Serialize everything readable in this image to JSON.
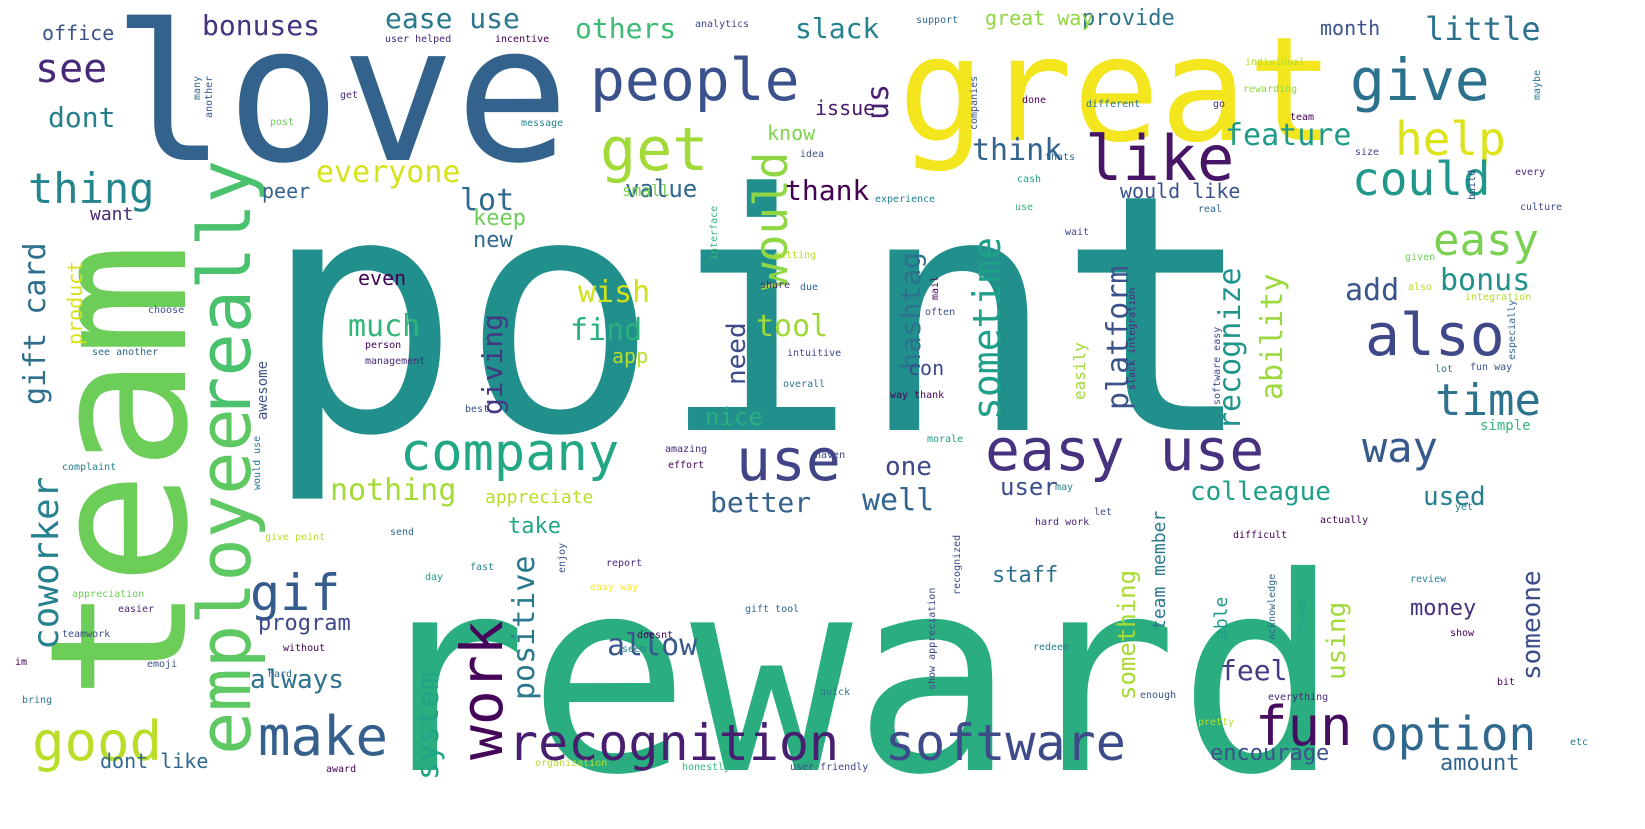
{
  "colors": {
    "background": "#ffffff",
    "palette": [
      "#440154",
      "#482878",
      "#3e4989",
      "#31688e",
      "#26828e",
      "#1f9e89",
      "#35b779",
      "#6ece58",
      "#b5de2b",
      "#fde725"
    ]
  },
  "words": [
    {
      "text": "point",
      "color": "#21908d"
    },
    {
      "text": "reward",
      "color": "#2aae7f"
    },
    {
      "text": "love",
      "color": "#33638d"
    },
    {
      "text": "great",
      "color": "#f3e51e"
    },
    {
      "text": "team",
      "color": "#6ccd59"
    },
    {
      "text": "employee",
      "color": "#5ec962"
    },
    {
      "text": "really",
      "color": "#4ac16d"
    },
    {
      "text": "people",
      "color": "#3b518b"
    },
    {
      "text": "give",
      "color": "#2c728e"
    },
    {
      "text": "help",
      "color": "#dde318"
    },
    {
      "text": "like",
      "color": "#481467"
    },
    {
      "text": "get",
      "color": "#a2da37"
    },
    {
      "text": "could",
      "color": "#1f988b"
    },
    {
      "text": "easy",
      "color": "#7ad151"
    },
    {
      "text": "also",
      "color": "#3f4889"
    },
    {
      "text": "time",
      "color": "#2c738e"
    },
    {
      "text": "company",
      "color": "#22a884"
    },
    {
      "text": "easy use",
      "color": "#46327e"
    },
    {
      "text": "use",
      "color": "#414487"
    },
    {
      "text": "way",
      "color": "#375a8c"
    },
    {
      "text": "work",
      "color": "#450559"
    },
    {
      "text": "make",
      "color": "#355f8d"
    },
    {
      "text": "software",
      "color": "#3e4a89"
    },
    {
      "text": "recognition",
      "color": "#481f70"
    },
    {
      "text": "fun",
      "color": "#470d60"
    },
    {
      "text": "option",
      "color": "#31688e"
    },
    {
      "text": "good",
      "color": "#bade28"
    },
    {
      "text": "gif",
      "color": "#365c8d"
    },
    {
      "text": "coworker",
      "color": "#26828e"
    },
    {
      "text": "thing",
      "color": "#25858e"
    },
    {
      "text": "see",
      "color": "#482878"
    },
    {
      "text": "dont",
      "color": "#277f8e"
    },
    {
      "text": "bonuses",
      "color": "#46337f"
    },
    {
      "text": "ease use",
      "color": "#2a788e"
    },
    {
      "text": "others",
      "color": "#3dbc74"
    },
    {
      "text": "slack",
      "color": "#25838e"
    },
    {
      "text": "little",
      "color": "#2d718e"
    },
    {
      "text": "office",
      "color": "#3b528b"
    },
    {
      "text": "would",
      "color": "#8fd744"
    },
    {
      "text": "sometime",
      "color": "#1fa088"
    },
    {
      "text": "hashtag",
      "color": "#2c728e"
    },
    {
      "text": "everyone",
      "color": "#d8e219"
    },
    {
      "text": "thank",
      "color": "#440154"
    },
    {
      "text": "feature",
      "color": "#1f9a8a"
    },
    {
      "text": "think",
      "color": "#33638d"
    },
    {
      "text": "lot",
      "color": "#2f6b8e"
    },
    {
      "text": "us",
      "color": "#482173"
    },
    {
      "text": "bonus",
      "color": "#21918c"
    },
    {
      "text": "add",
      "color": "#3a548c"
    },
    {
      "text": "ability",
      "color": "#9bd93c"
    },
    {
      "text": "recognize",
      "color": "#1f958b"
    },
    {
      "text": "platform",
      "color": "#3b528b"
    },
    {
      "text": "gift card",
      "color": "#2e6f8e"
    },
    {
      "text": "wish",
      "color": "#d0e11c"
    },
    {
      "text": "find",
      "color": "#2ab07f"
    },
    {
      "text": "tool",
      "color": "#9fda3a"
    },
    {
      "text": "much",
      "color": "#31b57b"
    },
    {
      "text": "giving",
      "color": "#453781"
    },
    {
      "text": "need",
      "color": "#3e4989"
    },
    {
      "text": "positive",
      "color": "#29798e"
    },
    {
      "text": "allow",
      "color": "#38598c"
    },
    {
      "text": "nothing",
      "color": "#a5db36"
    },
    {
      "text": "always",
      "color": "#2c728e"
    },
    {
      "text": "program",
      "color": "#3f4889"
    },
    {
      "text": "system",
      "color": "#20a486"
    },
    {
      "text": "something",
      "color": "#a8db34"
    },
    {
      "text": "colleague",
      "color": "#1f9f88"
    },
    {
      "text": "user",
      "color": "#3c4f8a"
    },
    {
      "text": "well",
      "color": "#32648e"
    },
    {
      "text": "one",
      "color": "#3f4788"
    },
    {
      "text": "better",
      "color": "#34618d"
    },
    {
      "text": "used",
      "color": "#277e8e"
    },
    {
      "text": "feel",
      "color": "#443b84"
    },
    {
      "text": "someone",
      "color": "#3d4e8a"
    },
    {
      "text": "using",
      "color": "#a0da39"
    },
    {
      "text": "money",
      "color": "#46307e"
    },
    {
      "text": "encourage",
      "color": "#3b528b"
    },
    {
      "text": "amount",
      "color": "#32658e"
    },
    {
      "text": "provide",
      "color": "#2b758e"
    },
    {
      "text": "great way",
      "color": "#92d741"
    },
    {
      "text": "month",
      "color": "#3b528b"
    },
    {
      "text": "value",
      "color": "#31688e"
    },
    {
      "text": "new",
      "color": "#2f6b8e"
    },
    {
      "text": "keep",
      "color": "#6ece58"
    },
    {
      "text": "want",
      "color": "#482878"
    },
    {
      "text": "peer",
      "color": "#33638d"
    },
    {
      "text": "issue",
      "color": "#481a6c"
    },
    {
      "text": "know",
      "color": "#7fd34e"
    },
    {
      "text": "nice",
      "color": "#29af7f"
    },
    {
      "text": "con",
      "color": "#3e4989"
    },
    {
      "text": "take",
      "color": "#22a785"
    },
    {
      "text": "appreciate",
      "color": "#b8de29"
    },
    {
      "text": "even",
      "color": "#440154"
    },
    {
      "text": "staff",
      "color": "#2d718e"
    },
    {
      "text": "able",
      "color": "#1e9b8a"
    },
    {
      "text": "team member",
      "color": "#2a788e"
    },
    {
      "text": "product",
      "color": "#d8e219"
    },
    {
      "text": "app",
      "color": "#b5de2b"
    },
    {
      "text": "small",
      "color": "#7ad151"
    },
    {
      "text": "would like",
      "color": "#3b528b"
    },
    {
      "text": "easily",
      "color": "#a2da37"
    },
    {
      "text": "dont like",
      "color": "#31688e"
    },
    {
      "text": "awesome",
      "color": "#3b528b"
    },
    {
      "text": "analytics",
      "color": "#3e4989"
    },
    {
      "text": "support",
      "color": "#31688e"
    },
    {
      "text": "user helped",
      "color": "#482878"
    },
    {
      "text": "incentive",
      "color": "#440154"
    },
    {
      "text": "individual",
      "color": "#b5de2b"
    },
    {
      "text": "rewarding",
      "color": "#8fd744"
    },
    {
      "text": "companies",
      "color": "#3b528b"
    },
    {
      "text": "different",
      "color": "#2a788e"
    },
    {
      "text": "message",
      "color": "#26828e"
    },
    {
      "text": "cash",
      "color": "#1f9e89"
    },
    {
      "text": "culture",
      "color": "#3e4989"
    },
    {
      "text": "every",
      "color": "#482878"
    },
    {
      "text": "mail",
      "color": "#440154"
    },
    {
      "text": "real",
      "color": "#31688e"
    },
    {
      "text": "idea",
      "color": "#3b528b"
    },
    {
      "text": "experience",
      "color": "#26828e"
    },
    {
      "text": "interface",
      "color": "#35b779"
    },
    {
      "text": "getting",
      "color": "#b5de2b"
    },
    {
      "text": "intuitive",
      "color": "#3e4989"
    },
    {
      "text": "overall",
      "color": "#2a788e"
    },
    {
      "text": "management",
      "color": "#482878"
    },
    {
      "text": "person",
      "color": "#440154"
    },
    {
      "text": "choose",
      "color": "#3b528b"
    },
    {
      "text": "see another",
      "color": "#31688e"
    },
    {
      "text": "morale",
      "color": "#1f9e89"
    },
    {
      "text": "haven",
      "color": "#3e4989"
    },
    {
      "text": "complaint",
      "color": "#26828e"
    },
    {
      "text": "amazing",
      "color": "#482878"
    },
    {
      "text": "effort",
      "color": "#440154"
    },
    {
      "text": "give point",
      "color": "#b5de2b"
    },
    {
      "text": "appreciation",
      "color": "#6ece58"
    },
    {
      "text": "teamwork",
      "color": "#3b528b"
    },
    {
      "text": "easier",
      "color": "#482878"
    },
    {
      "text": "without",
      "color": "#440154"
    },
    {
      "text": "emoji",
      "color": "#3b528b"
    },
    {
      "text": "hard",
      "color": "#31688e"
    },
    {
      "text": "bring",
      "color": "#2a788e"
    },
    {
      "text": "award",
      "color": "#440154"
    },
    {
      "text": "organization",
      "color": "#b5de2b"
    },
    {
      "text": "honestly",
      "color": "#35b779"
    },
    {
      "text": "user friendly",
      "color": "#3e4989"
    },
    {
      "text": "report",
      "color": "#482878"
    },
    {
      "text": "fast",
      "color": "#26828e"
    },
    {
      "text": "easy way",
      "color": "#fde725"
    },
    {
      "text": "enjoy",
      "color": "#3b528b"
    },
    {
      "text": "day",
      "color": "#1f9e89"
    },
    {
      "text": "gift tool",
      "color": "#31688e"
    },
    {
      "text": "doesnt",
      "color": "#440154"
    },
    {
      "text": "quick",
      "color": "#2a788e"
    },
    {
      "text": "redeem",
      "color": "#26828e"
    },
    {
      "text": "recognized",
      "color": "#3e4989"
    },
    {
      "text": "hard work",
      "color": "#482878"
    },
    {
      "text": "difficult",
      "color": "#440154"
    },
    {
      "text": "acknowledge",
      "color": "#31688e"
    },
    {
      "text": "change",
      "color": "#1f9e89"
    },
    {
      "text": "enough",
      "color": "#3b528b"
    },
    {
      "text": "pretty",
      "color": "#b5de2b"
    },
    {
      "text": "everything",
      "color": "#482878"
    },
    {
      "text": "review",
      "color": "#26828e"
    },
    {
      "text": "show",
      "color": "#440154"
    },
    {
      "text": "show appreciation",
      "color": "#3e4989"
    },
    {
      "text": "actually",
      "color": "#440154"
    },
    {
      "text": "simple",
      "color": "#35b779"
    },
    {
      "text": "fun way",
      "color": "#3b528b"
    },
    {
      "text": "lot",
      "color": "#2a788e"
    },
    {
      "text": "especially",
      "color": "#31688e"
    },
    {
      "text": "integration",
      "color": "#b5de2b"
    },
    {
      "text": "given",
      "color": "#6ece58"
    },
    {
      "text": "slack integration",
      "color": "#482878"
    },
    {
      "text": "software easy",
      "color": "#3e4989"
    },
    {
      "text": "way thank",
      "color": "#440154"
    },
    {
      "text": "best",
      "color": "#3b528b"
    },
    {
      "text": "may",
      "color": "#26828e"
    },
    {
      "text": "thats",
      "color": "#31688e"
    },
    {
      "text": "done",
      "color": "#440154"
    },
    {
      "text": "go",
      "color": "#482878"
    },
    {
      "text": "size",
      "color": "#3e4989"
    },
    {
      "text": "maybe",
      "color": "#2a788e"
    },
    {
      "text": "build",
      "color": "#3b528b"
    },
    {
      "text": "im",
      "color": "#440154"
    },
    {
      "text": "send",
      "color": "#31688e"
    },
    {
      "text": "seem",
      "color": "#26828e"
    },
    {
      "text": "let",
      "color": "#3e4989"
    },
    {
      "text": "post",
      "color": "#6ece58"
    },
    {
      "text": "get",
      "color": "#482878"
    },
    {
      "text": "another",
      "color": "#3b528b"
    },
    {
      "text": "many",
      "color": "#31688e"
    },
    {
      "text": "team",
      "color": "#440154"
    },
    {
      "text": "would use",
      "color": "#2a788e"
    },
    {
      "text": "use",
      "color": "#35b779"
    },
    {
      "text": "also",
      "color": "#b5de2b"
    },
    {
      "text": "often",
      "color": "#3b528b"
    },
    {
      "text": "due",
      "color": "#31688e"
    },
    {
      "text": "share",
      "color": "#482878"
    },
    {
      "text": "wait",
      "color": "#3e4989"
    },
    {
      "text": "yet",
      "color": "#26828e"
    },
    {
      "text": "bit",
      "color": "#440154"
    },
    {
      "text": "etc",
      "color": "#2a788e"
    }
  ]
}
